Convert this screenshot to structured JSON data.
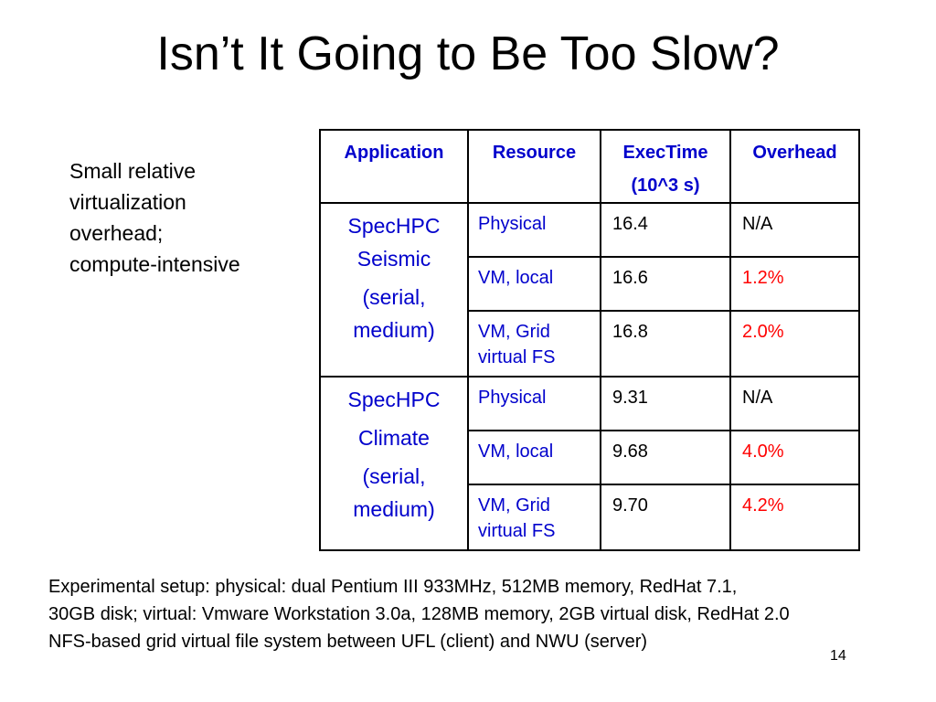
{
  "slide": {
    "title": "Isn’t It Going to Be Too Slow?",
    "side_note": [
      "Small relative",
      "virtualization",
      "overhead;",
      "compute-intensive"
    ],
    "table": {
      "headers": {
        "application": "Application",
        "resource": "Resource",
        "exectime": [
          "ExecTime",
          "(10^3 s)"
        ],
        "overhead": "Overhead"
      },
      "groups": [
        {
          "application": [
            "SpecHPC",
            "Seismic",
            "(serial,",
            "medium)"
          ],
          "rows": [
            {
              "resource": [
                "Physical"
              ],
              "exectime": "16.4",
              "overhead": "N/A"
            },
            {
              "resource": [
                "VM, local"
              ],
              "exectime": "16.6",
              "overhead": "1.2%"
            },
            {
              "resource": [
                "VM, Grid",
                "virtual FS"
              ],
              "exectime": "16.8",
              "overhead": "2.0%"
            }
          ]
        },
        {
          "application": [
            "SpecHPC",
            "Climate",
            "(serial,",
            "medium)"
          ],
          "rows": [
            {
              "resource": [
                "Physical"
              ],
              "exectime": "9.31",
              "overhead": "N/A"
            },
            {
              "resource": [
                "VM, local"
              ],
              "exectime": "9.68",
              "overhead": "4.0%"
            },
            {
              "resource": [
                "VM, Grid",
                "virtual FS"
              ],
              "exectime": "9.70",
              "overhead": "4.2%"
            }
          ]
        }
      ]
    },
    "footnote": [
      "Experimental setup: physical: dual Pentium III 933MHz, 512MB memory, RedHat 7.1,",
      "30GB disk; virtual: Vmware Workstation 3.0a, 128MB memory, 2GB virtual disk, RedHat 2.0",
      "NFS-based grid virtual file system between UFL (client) and NWU (server)"
    ],
    "page_number": "14"
  },
  "colors": {
    "header_text": "#0000cc",
    "overhead_highlight": "#ff0000",
    "border": "#000000"
  }
}
